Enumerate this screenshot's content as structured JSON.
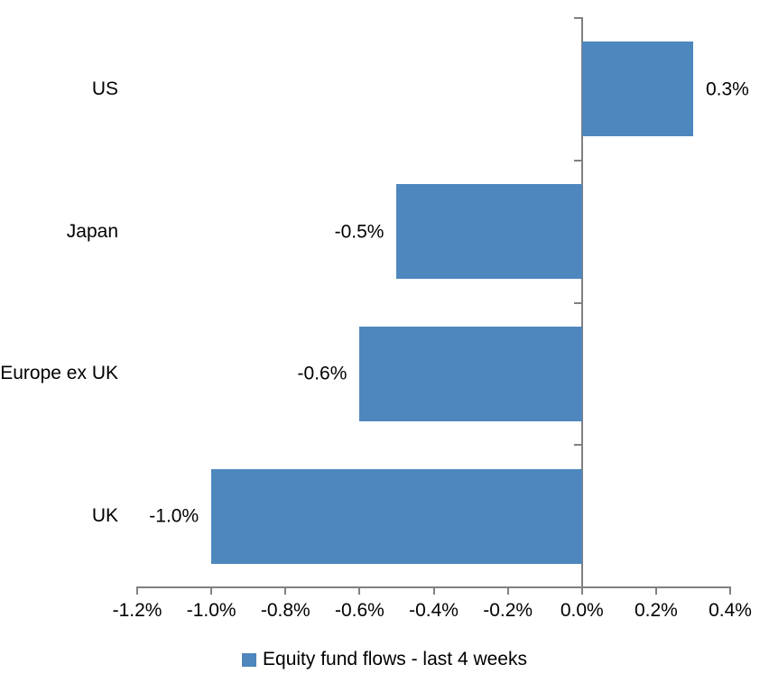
{
  "chart_data": {
    "type": "bar",
    "orientation": "horizontal",
    "categories": [
      "US",
      "Japan",
      "Europe ex UK",
      "UK"
    ],
    "values": [
      0.3,
      -0.5,
      -0.6,
      -1.0
    ],
    "data_labels": [
      "0.3%",
      "-0.5%",
      "-0.6%",
      "-1.0%"
    ],
    "x_tick_labels": [
      "-1.2%",
      "-1.0%",
      "-0.8%",
      "-0.6%",
      "-0.4%",
      "-0.2%",
      "0.0%",
      "0.2%",
      "0.4%"
    ],
    "xlim": [
      -1.2,
      0.4
    ],
    "x_tick_step": 0.2,
    "grid": false,
    "value_unit": "%",
    "legend": {
      "position": "bottom",
      "label": "Equity fund flows - last 4 weeks"
    },
    "bar_color": "#4E87BD",
    "axis_color": "#808080",
    "text_color": "#000000",
    "background_color": "#FFFFFF"
  }
}
